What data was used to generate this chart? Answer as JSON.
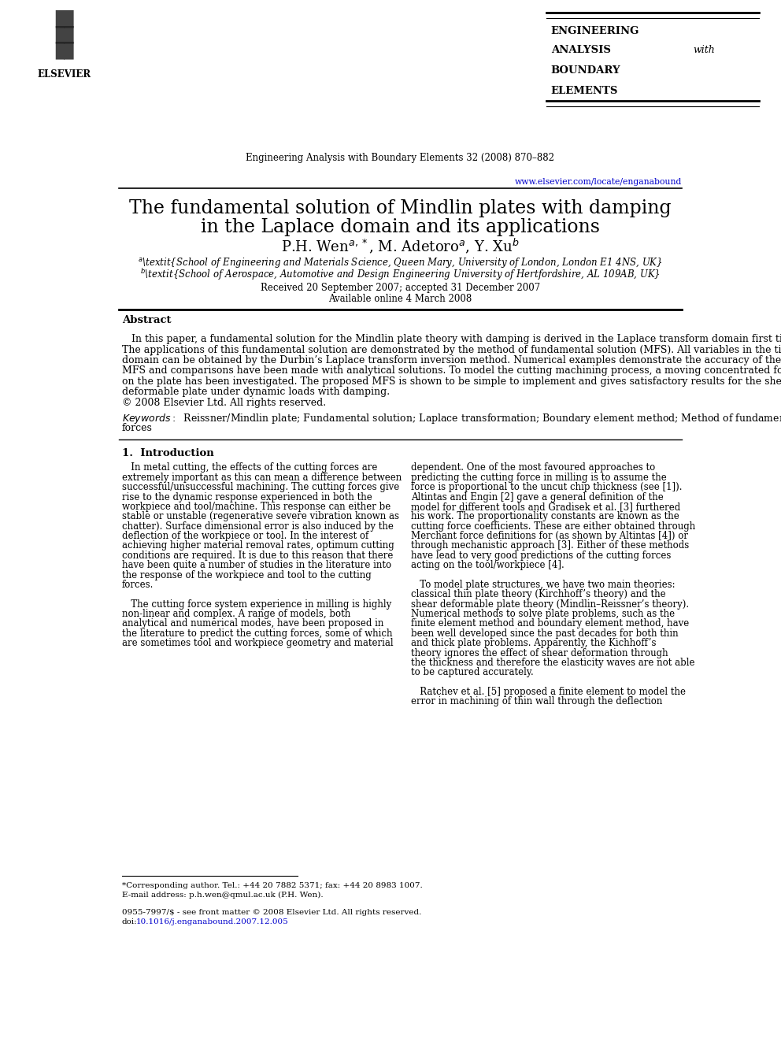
{
  "page_width": 9.92,
  "page_height": 13.23,
  "background_color": "#ffffff",
  "journal_name": "Engineering Analysis with Boundary Elements 32 (2008) 870–882",
  "journal_abbrev_title": "ENGINEERING\nANALYSIS with\nBOUNDARY\nELEMENTS",
  "journal_url": "www.elsevier.com/locate/enganabound",
  "paper_title_line1": "The fundamental solution of Mindlin plates with damping",
  "paper_title_line2": "in the Laplace domain and its applications",
  "received_info": "Received 20 September 2007; accepted 31 December 2007",
  "available_info": "Available online 4 March 2008",
  "abstract_title": "Abstract",
  "keywords_text": "Reissner/Mindlin plate; Fundamental solution; Laplace transformation; Boundary element method; Method of fundamental solution; Cutting forces",
  "keywords_line2": "forces",
  "section1_title": "1.  Introduction",
  "url_color": "#0000cc",
  "doi_color": "#0000cc",
  "title_fontsize": 17,
  "author_fontsize": 13,
  "affil_fontsize": 8.5,
  "abstract_fontsize": 9.0,
  "body_fontsize": 8.5,
  "journal_header_fontsize": 8.5
}
